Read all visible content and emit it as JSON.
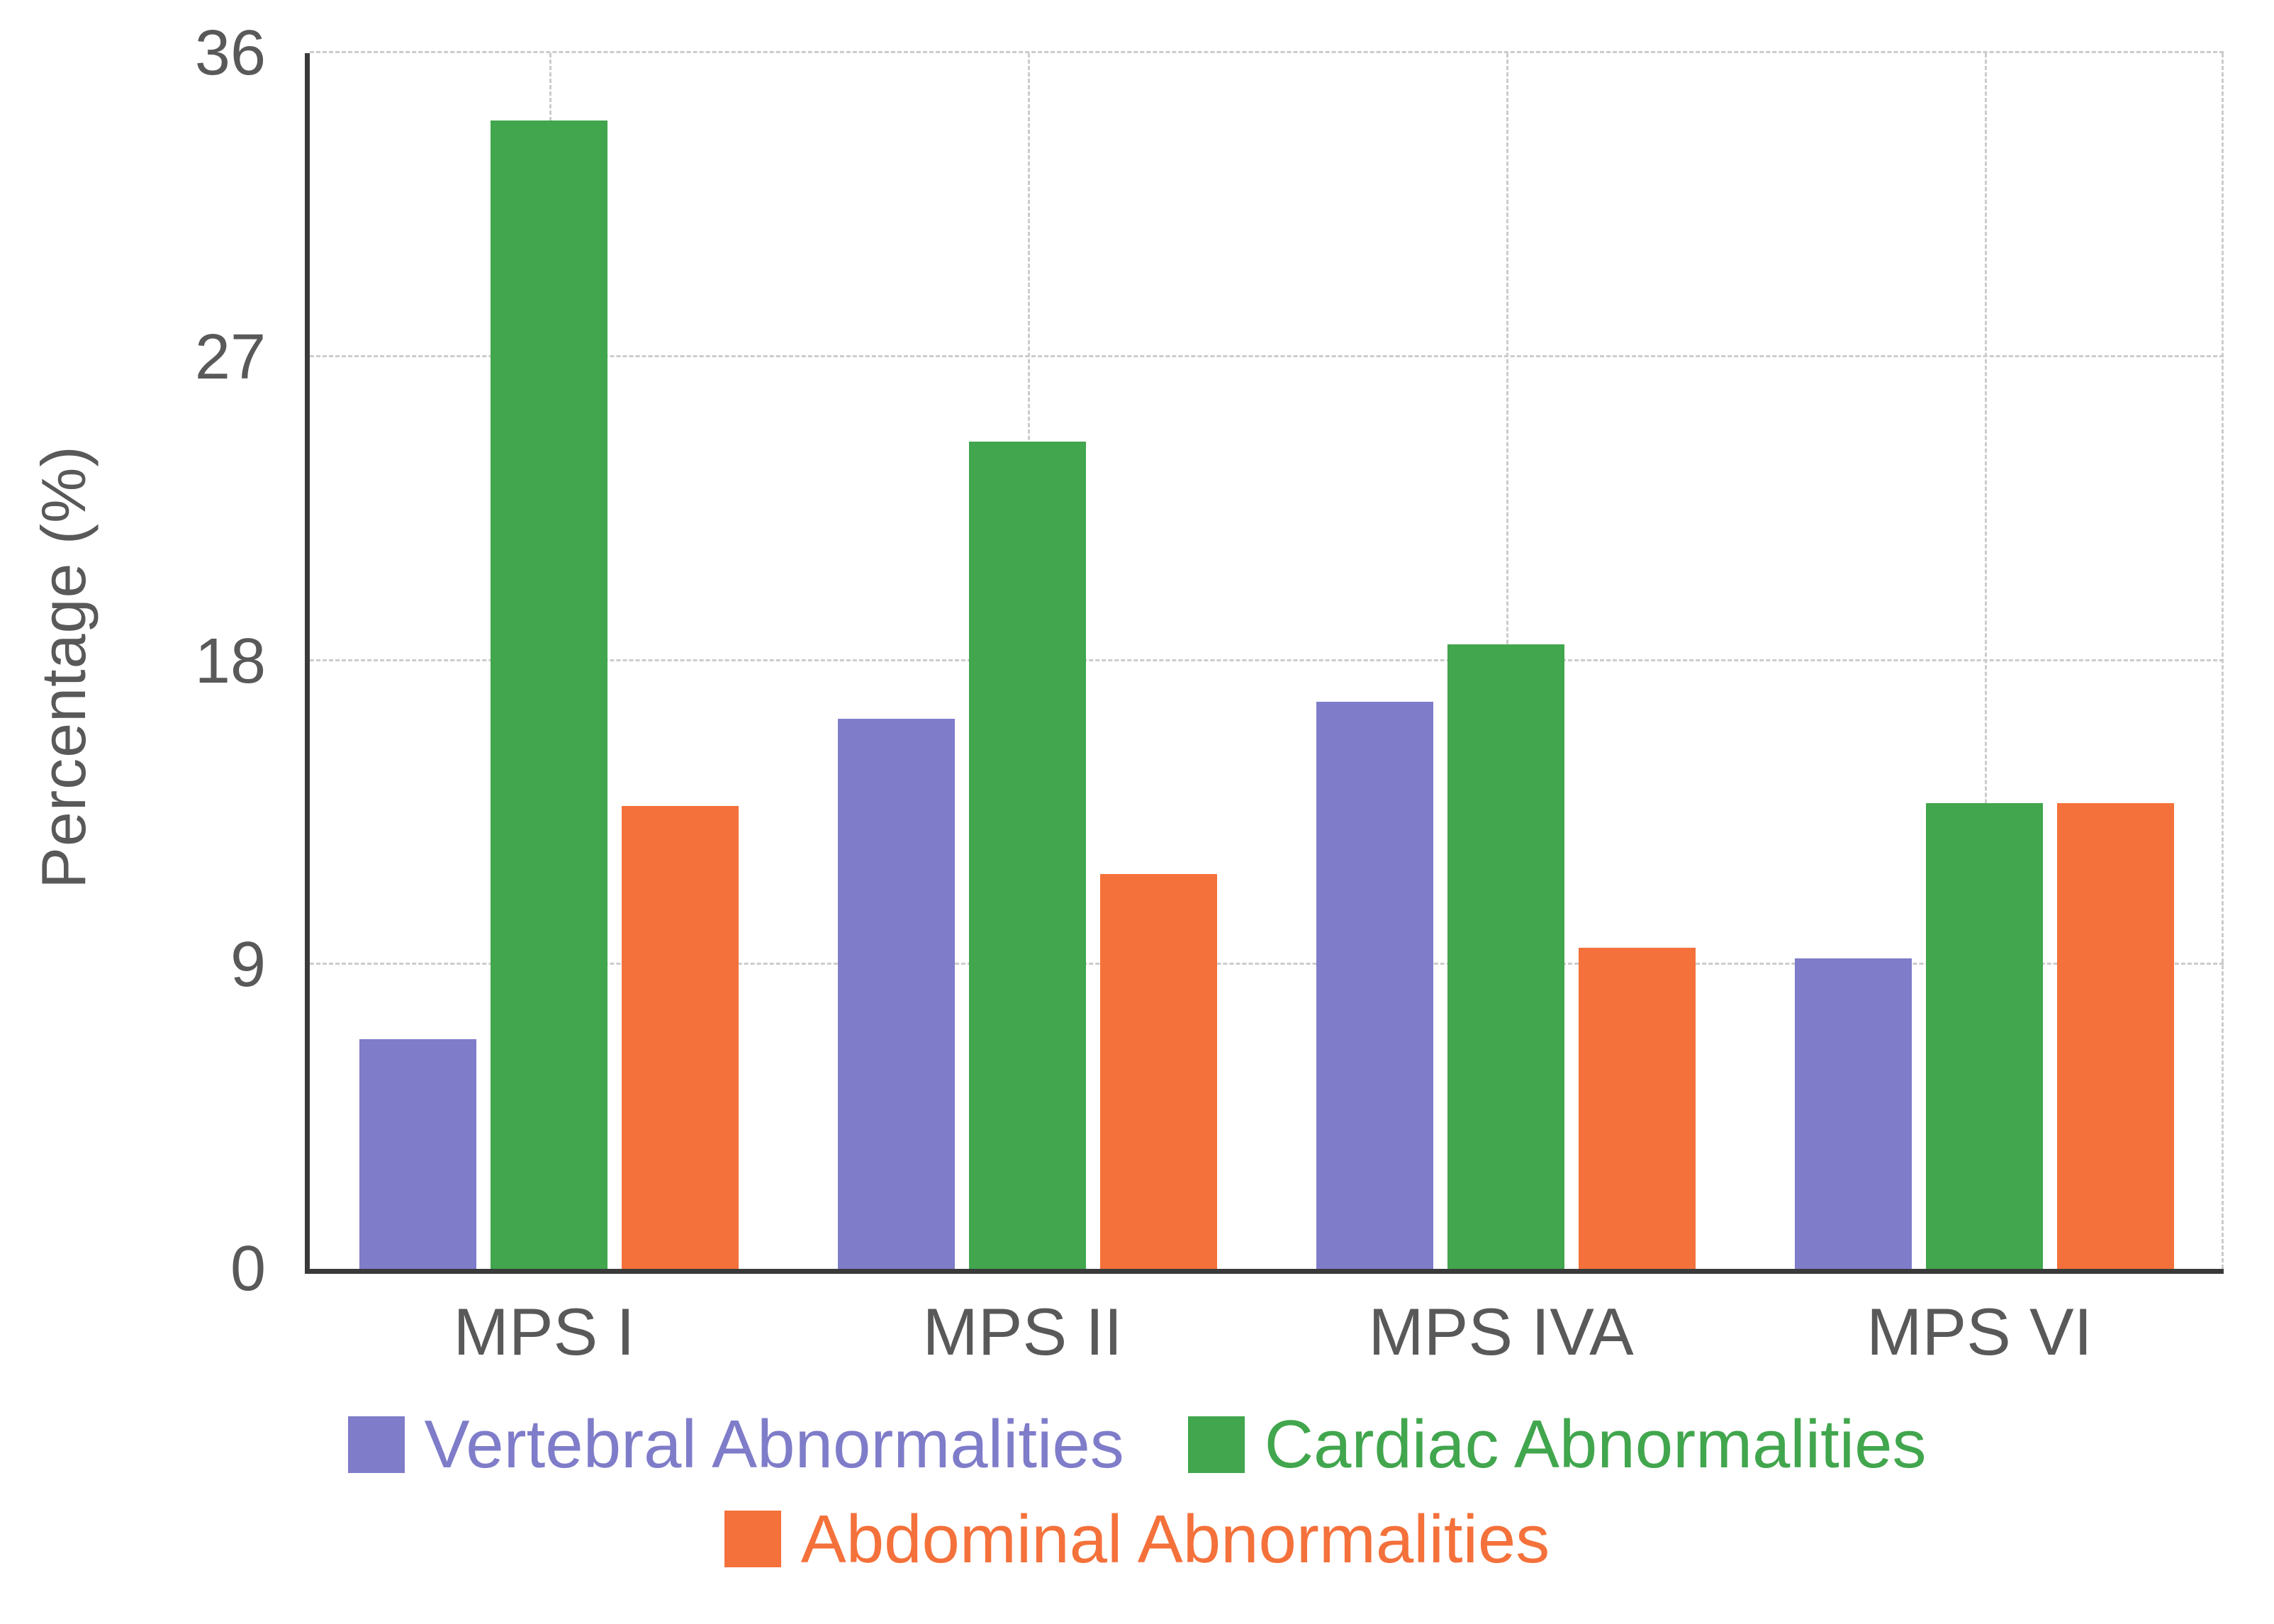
{
  "chart_data": {
    "type": "bar",
    "title": "",
    "xlabel": "",
    "ylabel": "Percentage (%)",
    "ylim": [
      0,
      36
    ],
    "yticks": [
      0,
      9,
      18,
      27,
      36
    ],
    "grid": true,
    "legend_position": "bottom",
    "categories": [
      "MPS I",
      "MPS II",
      "MPS IVA",
      "MPS VI"
    ],
    "series": [
      {
        "name": "Vertebral Abnormalities",
        "color": "#7F7CC9",
        "values": [
          6.8,
          16.3,
          16.8,
          9.2
        ]
      },
      {
        "name": "Cardiac Abnormalities",
        "color": "#41A64D",
        "values": [
          34.0,
          24.5,
          18.5,
          13.8
        ]
      },
      {
        "name": "Abdominal Abnormalities",
        "color": "#F4713B",
        "values": [
          13.7,
          11.7,
          9.5,
          13.8
        ]
      }
    ],
    "axis_text_color": "#595959",
    "axis_line_color": "#3a3a3a",
    "gridline_color": "#cccccc"
  }
}
